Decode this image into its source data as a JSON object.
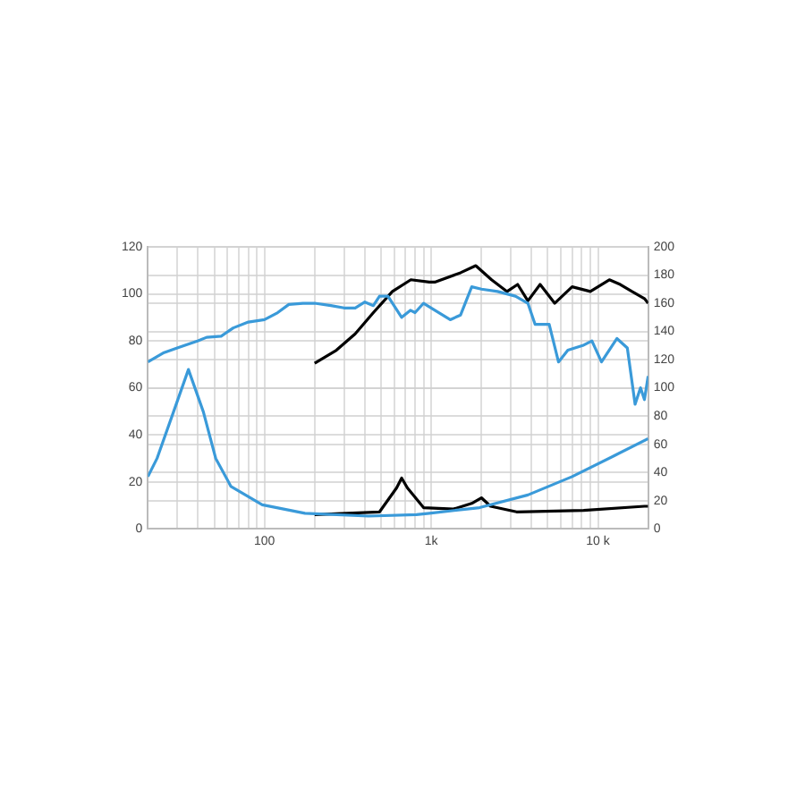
{
  "chart_data": {
    "type": "line",
    "log": "x",
    "grid": true,
    "legend": false,
    "marker": "none",
    "line_style": "solid",
    "xlim": [
      20,
      20000
    ],
    "xticks": [
      {
        "value": 20,
        "label": null
      },
      {
        "value": 30,
        "label": null
      },
      {
        "value": 40,
        "label": null
      },
      {
        "value": 50,
        "label": null
      },
      {
        "value": 60,
        "label": null
      },
      {
        "value": 70,
        "label": null
      },
      {
        "value": 80,
        "label": null
      },
      {
        "value": 90,
        "label": null
      },
      {
        "value": 100,
        "label": "100"
      },
      {
        "value": 200,
        "label": null
      },
      {
        "value": 300,
        "label": null
      },
      {
        "value": 400,
        "label": null
      },
      {
        "value": 500,
        "label": null
      },
      {
        "value": 600,
        "label": null
      },
      {
        "value": 700,
        "label": null
      },
      {
        "value": 800,
        "label": null
      },
      {
        "value": 900,
        "label": null
      },
      {
        "value": 1000,
        "label": "1k"
      },
      {
        "value": 2000,
        "label": null
      },
      {
        "value": 3000,
        "label": null
      },
      {
        "value": 4000,
        "label": null
      },
      {
        "value": 5000,
        "label": null
      },
      {
        "value": 6000,
        "label": null
      },
      {
        "value": 7000,
        "label": null
      },
      {
        "value": 8000,
        "label": null
      },
      {
        "value": 9000,
        "label": null
      },
      {
        "value": 10000,
        "label": "10 k"
      },
      {
        "value": 20000,
        "label": null
      }
    ],
    "ylim": [
      0,
      120
    ],
    "yticks": [
      0,
      20,
      40,
      60,
      80,
      100,
      120
    ],
    "y2lim": [
      0,
      200
    ],
    "y2ticks": [
      0,
      20,
      40,
      60,
      80,
      100,
      120,
      140,
      160,
      180,
      200
    ],
    "series": [
      {
        "color": "#3a9ad9",
        "x": [
          20,
          25,
          30,
          40,
          45,
          55,
          65,
          80,
          100,
          120,
          140,
          170,
          200,
          250,
          300,
          350,
          400,
          450,
          490,
          550,
          665,
          750,
          800,
          900,
          1000,
          1300,
          1500,
          1750,
          2000,
          2500,
          3200,
          3800,
          4200,
          5100,
          5800,
          6600,
          8100,
          9200,
          10500,
          13000,
          15000,
          16700,
          18000,
          19000,
          20000
        ],
        "values": [
          71,
          75,
          77,
          80,
          81.5,
          82,
          85.5,
          88,
          89,
          92,
          95.5,
          96,
          96,
          95,
          94,
          94,
          96.5,
          95,
          99,
          99,
          90,
          93,
          92,
          96,
          94,
          89,
          91,
          103,
          102,
          101,
          99,
          96,
          87,
          87,
          71,
          76,
          78,
          80,
          71,
          81,
          77,
          53,
          60,
          55,
          65
        ]
      },
      {
        "color": "#000000",
        "x": [
          200,
          270,
          350,
          450,
          585,
          755,
          975,
          1050,
          1500,
          1850,
          2300,
          2850,
          3300,
          3800,
          4500,
          5500,
          7000,
          9000,
          11700,
          13600,
          16000,
          19000,
          20000
        ],
        "values": [
          70.5,
          76,
          83,
          92,
          101,
          106,
          105,
          105,
          109,
          112,
          106,
          101,
          104,
          97,
          104,
          96,
          103,
          101,
          106,
          104,
          101,
          98,
          96
        ]
      },
      {
        "color": "#3a9ad9",
        "axis": "y2",
        "x": [
          20,
          22.7,
          28.5,
          35,
          43,
          51,
          63,
          97,
          175,
          420,
          815,
          975,
          1950,
          3800,
          7000,
          12600,
          20000
        ],
        "values": [
          37,
          50,
          83,
          113,
          83,
          50,
          30,
          17,
          11,
          9,
          10,
          11,
          15,
          24,
          37,
          52,
          64
        ]
      },
      {
        "color": "#000000",
        "axis": "y2",
        "x": [
          200,
          490,
          620,
          665,
          720,
          900,
          1360,
          1750,
          2000,
          2270,
          3250,
          8200,
          19000,
          20000
        ],
        "values": [
          10,
          12,
          29,
          36,
          29,
          15,
          14,
          18,
          22,
          16,
          12,
          13,
          16,
          16
        ]
      }
    ]
  }
}
